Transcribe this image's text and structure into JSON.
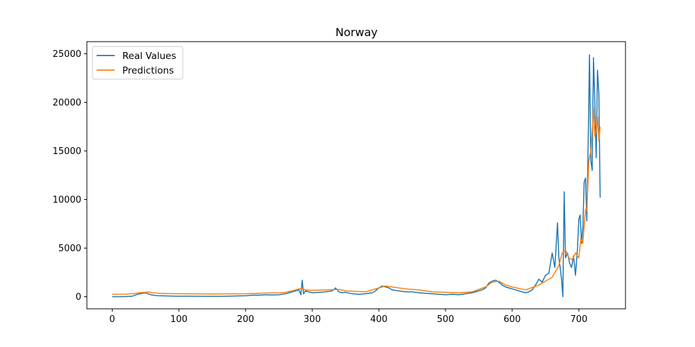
{
  "chart_data": {
    "type": "line",
    "title": "Norway",
    "xlabel": "",
    "ylabel": "",
    "xlim": [
      -38,
      770
    ],
    "ylim": [
      -1250,
      26250
    ],
    "xticks": [
      0,
      100,
      200,
      300,
      400,
      500,
      600,
      700
    ],
    "yticks": [
      0,
      5000,
      10000,
      15000,
      20000,
      25000
    ],
    "grid": false,
    "legend": {
      "position": "top-left",
      "entries": [
        "Real Values",
        "Predictions"
      ]
    },
    "series": [
      {
        "name": "Real Values",
        "color": "#1f77b4",
        "x": [
          0,
          10,
          20,
          30,
          34,
          38,
          42,
          46,
          50,
          54,
          58,
          62,
          66,
          70,
          80,
          90,
          100,
          120,
          140,
          160,
          180,
          200,
          210,
          220,
          230,
          240,
          250,
          260,
          265,
          270,
          275,
          280,
          283,
          285,
          287,
          290,
          295,
          300,
          310,
          320,
          330,
          335,
          340,
          345,
          350,
          360,
          370,
          380,
          390,
          395,
          400,
          405,
          410,
          415,
          420,
          430,
          440,
          450,
          460,
          470,
          480,
          490,
          500,
          510,
          520,
          530,
          540,
          550,
          555,
          560,
          565,
          570,
          575,
          580,
          585,
          590,
          595,
          600,
          605,
          610,
          615,
          620,
          625,
          630,
          635,
          640,
          645,
          650,
          655,
          660,
          664,
          668,
          670,
          672,
          674,
          676,
          678,
          680,
          683,
          686,
          689,
          692,
          695,
          698,
          700,
          702,
          704,
          706,
          708,
          710,
          712,
          714,
          716,
          718,
          720,
          722,
          724,
          726,
          728,
          730,
          732
        ],
        "y": [
          0,
          0,
          10,
          50,
          150,
          250,
          300,
          350,
          400,
          300,
          200,
          150,
          120,
          100,
          80,
          60,
          50,
          50,
          40,
          40,
          60,
          100,
          150,
          150,
          200,
          180,
          200,
          300,
          400,
          500,
          600,
          700,
          200,
          1700,
          300,
          600,
          500,
          400,
          450,
          500,
          600,
          900,
          500,
          400,
          450,
          300,
          250,
          300,
          400,
          600,
          900,
          1100,
          1000,
          900,
          700,
          600,
          500,
          500,
          400,
          350,
          300,
          250,
          200,
          250,
          200,
          300,
          400,
          600,
          700,
          900,
          1400,
          1600,
          1700,
          1500,
          1200,
          1000,
          900,
          800,
          700,
          600,
          500,
          400,
          500,
          700,
          1200,
          1800,
          1500,
          2200,
          2400,
          4500,
          3000,
          7600,
          4000,
          3000,
          1800,
          0,
          10800,
          4000,
          4500,
          3500,
          3000,
          4200,
          2200,
          5000,
          8000,
          8400,
          5500,
          7000,
          11800,
          12200,
          7800,
          15800,
          24900,
          14000,
          13000,
          24600,
          20000,
          14300,
          23300,
          21000,
          10200
        ]
      },
      {
        "name": "Predictions",
        "color": "#ff7f0e",
        "x": [
          0,
          20,
          30,
          40,
          50,
          55,
          60,
          70,
          100,
          150,
          200,
          220,
          250,
          260,
          270,
          280,
          285,
          290,
          300,
          320,
          340,
          350,
          380,
          400,
          410,
          420,
          440,
          460,
          480,
          500,
          520,
          540,
          560,
          570,
          580,
          590,
          600,
          620,
          640,
          660,
          670,
          675,
          680,
          685,
          690,
          695,
          700,
          703,
          706,
          710,
          712,
          715,
          718,
          720,
          722,
          724,
          726,
          728,
          730,
          732
        ],
        "y": [
          250,
          260,
          300,
          400,
          450,
          500,
          400,
          350,
          300,
          280,
          300,
          350,
          400,
          450,
          600,
          800,
          850,
          700,
          650,
          700,
          750,
          600,
          500,
          900,
          1100,
          1000,
          800,
          700,
          500,
          450,
          400,
          500,
          1000,
          1500,
          1600,
          1200,
          1000,
          700,
          1200,
          2000,
          3200,
          4500,
          4800,
          4000,
          3800,
          4500,
          4000,
          6000,
          5500,
          9000,
          8800,
          14000,
          15000,
          17000,
          19500,
          16500,
          17000,
          18500,
          16000,
          17500
        ]
      }
    ]
  }
}
